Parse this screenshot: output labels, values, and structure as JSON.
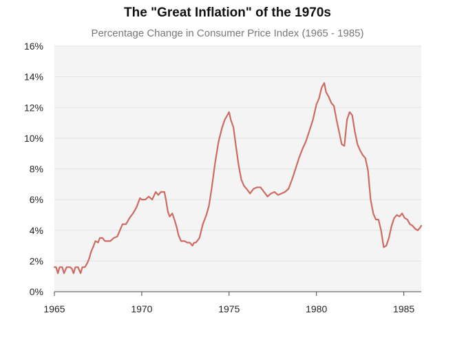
{
  "chart_data": {
    "type": "line",
    "title": "The \"Great Inflation\" of the 1970s",
    "subtitle": "Percentage Change in Consumer Price Index (1965 - 1985)",
    "xlabel": "",
    "ylabel": "",
    "xlim": [
      1965,
      1986
    ],
    "ylim": [
      0,
      16
    ],
    "x_ticks": [
      1965,
      1970,
      1975,
      1980,
      1985
    ],
    "y_ticks": [
      {
        "value": 0,
        "label": "0%"
      },
      {
        "value": 2,
        "label": "2%"
      },
      {
        "value": 4,
        "label": "4%"
      },
      {
        "value": 6,
        "label": "6%"
      },
      {
        "value": 8,
        "label": "8%"
      },
      {
        "value": 10,
        "label": "10%"
      },
      {
        "value": 12,
        "label": "12%"
      },
      {
        "value": 14,
        "label": "14%"
      },
      {
        "value": 16,
        "label": "16%"
      }
    ],
    "grid": true,
    "colors": {
      "line": "#cd6a62",
      "plot_background": "#f4f4f4",
      "grid": "#e2e2e2"
    },
    "series": [
      {
        "points": [
          [
            1965.0,
            1.6
          ],
          [
            1965.1,
            1.6
          ],
          [
            1965.2,
            1.2
          ],
          [
            1965.3,
            1.6
          ],
          [
            1965.45,
            1.6
          ],
          [
            1965.55,
            1.2
          ],
          [
            1965.7,
            1.6
          ],
          [
            1965.8,
            1.6
          ],
          [
            1965.9,
            1.6
          ],
          [
            1966.0,
            1.5
          ],
          [
            1966.1,
            1.2
          ],
          [
            1966.2,
            1.6
          ],
          [
            1966.35,
            1.6
          ],
          [
            1966.5,
            1.2
          ],
          [
            1966.6,
            1.6
          ],
          [
            1966.75,
            1.6
          ],
          [
            1966.9,
            1.9
          ],
          [
            1967.0,
            2.2
          ],
          [
            1967.1,
            2.6
          ],
          [
            1967.25,
            3.0
          ],
          [
            1967.35,
            3.3
          ],
          [
            1967.5,
            3.2
          ],
          [
            1967.6,
            3.5
          ],
          [
            1967.75,
            3.5
          ],
          [
            1967.9,
            3.3
          ],
          [
            1968.0,
            3.3
          ],
          [
            1968.2,
            3.3
          ],
          [
            1968.4,
            3.5
          ],
          [
            1968.6,
            3.6
          ],
          [
            1968.75,
            4.0
          ],
          [
            1968.9,
            4.4
          ],
          [
            1969.1,
            4.4
          ],
          [
            1969.3,
            4.8
          ],
          [
            1969.5,
            5.1
          ],
          [
            1969.7,
            5.5
          ],
          [
            1969.9,
            6.1
          ],
          [
            1970.0,
            6.0
          ],
          [
            1970.2,
            6.0
          ],
          [
            1970.4,
            6.2
          ],
          [
            1970.6,
            6.0
          ],
          [
            1970.8,
            6.5
          ],
          [
            1970.95,
            6.3
          ],
          [
            1971.1,
            6.5
          ],
          [
            1971.3,
            6.5
          ],
          [
            1971.4,
            5.9
          ],
          [
            1971.5,
            5.2
          ],
          [
            1971.6,
            4.9
          ],
          [
            1971.75,
            5.1
          ],
          [
            1971.9,
            4.6
          ],
          [
            1972.0,
            4.2
          ],
          [
            1972.1,
            3.7
          ],
          [
            1972.25,
            3.3
          ],
          [
            1972.45,
            3.3
          ],
          [
            1972.6,
            3.2
          ],
          [
            1972.75,
            3.2
          ],
          [
            1972.9,
            3.0
          ],
          [
            1973.0,
            3.2
          ],
          [
            1973.1,
            3.2
          ],
          [
            1973.3,
            3.5
          ],
          [
            1973.5,
            4.4
          ],
          [
            1973.7,
            5.0
          ],
          [
            1973.85,
            5.6
          ],
          [
            1974.0,
            6.7
          ],
          [
            1974.2,
            8.4
          ],
          [
            1974.4,
            9.8
          ],
          [
            1974.6,
            10.7
          ],
          [
            1974.75,
            11.2
          ],
          [
            1974.85,
            11.4
          ],
          [
            1975.0,
            11.7
          ],
          [
            1975.1,
            11.2
          ],
          [
            1975.25,
            10.7
          ],
          [
            1975.4,
            9.4
          ],
          [
            1975.55,
            8.2
          ],
          [
            1975.7,
            7.3
          ],
          [
            1975.85,
            6.9
          ],
          [
            1976.0,
            6.7
          ],
          [
            1976.2,
            6.4
          ],
          [
            1976.4,
            6.7
          ],
          [
            1976.6,
            6.8
          ],
          [
            1976.8,
            6.8
          ],
          [
            1977.0,
            6.5
          ],
          [
            1977.2,
            6.2
          ],
          [
            1977.4,
            6.4
          ],
          [
            1977.6,
            6.5
          ],
          [
            1977.8,
            6.3
          ],
          [
            1978.0,
            6.4
          ],
          [
            1978.2,
            6.5
          ],
          [
            1978.4,
            6.7
          ],
          [
            1978.6,
            7.3
          ],
          [
            1978.8,
            8.0
          ],
          [
            1979.0,
            8.7
          ],
          [
            1979.2,
            9.3
          ],
          [
            1979.4,
            9.8
          ],
          [
            1979.6,
            10.5
          ],
          [
            1979.8,
            11.2
          ],
          [
            1980.0,
            12.2
          ],
          [
            1980.15,
            12.6
          ],
          [
            1980.3,
            13.3
          ],
          [
            1980.45,
            13.6
          ],
          [
            1980.55,
            13.0
          ],
          [
            1980.7,
            12.7
          ],
          [
            1980.85,
            12.3
          ],
          [
            1981.0,
            12.1
          ],
          [
            1981.15,
            11.2
          ],
          [
            1981.3,
            10.4
          ],
          [
            1981.45,
            9.6
          ],
          [
            1981.6,
            9.5
          ],
          [
            1981.75,
            11.2
          ],
          [
            1981.9,
            11.7
          ],
          [
            1982.05,
            11.5
          ],
          [
            1982.2,
            10.4
          ],
          [
            1982.35,
            9.6
          ],
          [
            1982.5,
            9.2
          ],
          [
            1982.65,
            8.9
          ],
          [
            1982.8,
            8.7
          ],
          [
            1982.95,
            7.9
          ],
          [
            1983.1,
            6.0
          ],
          [
            1983.25,
            5.1
          ],
          [
            1983.4,
            4.7
          ],
          [
            1983.55,
            4.7
          ],
          [
            1983.7,
            4.0
          ],
          [
            1983.85,
            2.9
          ],
          [
            1984.0,
            3.0
          ],
          [
            1984.15,
            3.5
          ],
          [
            1984.3,
            4.3
          ],
          [
            1984.45,
            4.8
          ],
          [
            1984.6,
            5.0
          ],
          [
            1984.75,
            4.9
          ],
          [
            1984.9,
            5.1
          ],
          [
            1985.05,
            4.8
          ],
          [
            1985.2,
            4.7
          ],
          [
            1985.35,
            4.4
          ],
          [
            1985.5,
            4.3
          ],
          [
            1985.65,
            4.1
          ],
          [
            1985.8,
            4.0
          ],
          [
            1985.95,
            4.2
          ],
          [
            1986.0,
            4.3
          ]
        ]
      }
    ]
  }
}
